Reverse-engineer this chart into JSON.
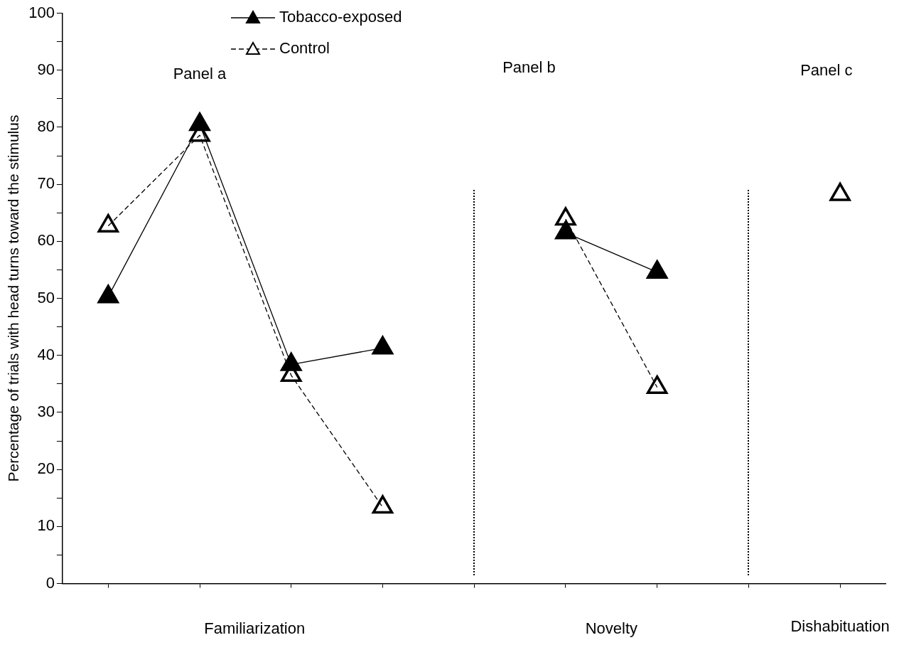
{
  "chart_data": {
    "type": "line",
    "ylabel": "Percentage of trials with head turns toward the stimulus",
    "annotations": [
      "Panel a",
      "Panel b",
      "Panel c",
      "Familiarization",
      "Novelty",
      "Dishabituation"
    ],
    "categories": [
      null,
      null,
      null,
      null,
      null,
      null,
      null,
      null,
      null
    ],
    "ylim": [
      0,
      100
    ],
    "yticks": [
      0,
      {
        "value": 5,
        "label": null
      },
      10,
      {
        "value": 15,
        "label": null
      },
      20,
      {
        "value": 25,
        "label": null
      },
      30,
      {
        "value": 35,
        "label": null
      },
      40,
      {
        "value": 45,
        "label": null
      },
      50,
      {
        "value": 55,
        "label": null
      },
      60,
      {
        "value": 65,
        "label": null
      },
      70,
      {
        "value": 75,
        "label": null
      },
      80,
      {
        "value": 85,
        "label": null
      },
      90,
      {
        "value": 95,
        "label": null
      },
      100
    ],
    "series": [
      {
        "name": "Tobacco-exposed",
        "color": "#000000",
        "line_style": "solid",
        "values": [
          50.3,
          80.5,
          38.4,
          41.3,
          null,
          61.5,
          54.6,
          null,
          null
        ]
      },
      {
        "name": "Control",
        "color": "#000000",
        "line_style": "dashed",
        "values": [
          62.7,
          78.6,
          36.5,
          13.4,
          null,
          63.9,
          34.4,
          null,
          68.2
        ]
      }
    ],
    "marker": "triangle",
    "legend": "top",
    "grid": false
  }
}
